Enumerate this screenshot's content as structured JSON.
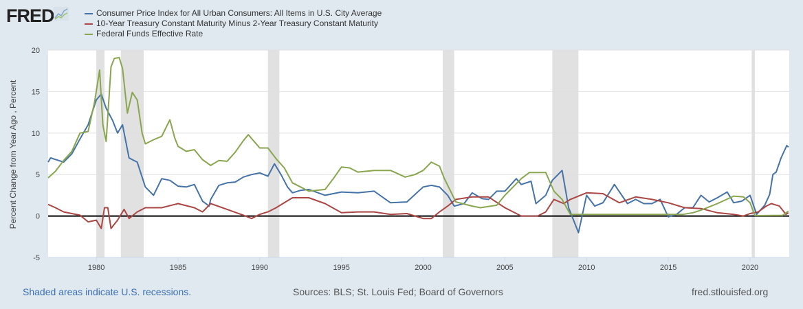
{
  "header": {
    "logo": "FRED"
  },
  "chart_data": {
    "type": "line",
    "title": "",
    "ylabel": "Percent Change from Year Ago , Percent",
    "xlabel": "",
    "xlim": [
      1977.05,
      2022.4
    ],
    "ylim": [
      -5,
      20
    ],
    "yticks": [
      -5,
      0,
      5,
      10,
      15,
      20
    ],
    "xticks": [
      1980,
      1985,
      1990,
      1995,
      2000,
      2005,
      2010,
      2015,
      2020
    ],
    "grid": true,
    "legend_position": "top-left",
    "recessions": [
      [
        1980.0,
        1980.5
      ],
      [
        1981.5,
        1982.9
      ],
      [
        1990.5,
        1991.2
      ],
      [
        2001.2,
        2001.9
      ],
      [
        2007.9,
        2009.5
      ],
      [
        2020.1,
        2020.3
      ]
    ],
    "series": [
      {
        "name": "Consumer Price Index for All Urban Consumers: All Items in U.S. City Average",
        "color": "#4572a7",
        "x": [
          1977.05,
          1977.2,
          1978,
          1978.5,
          1979,
          1979.5,
          1980.0,
          1980.3,
          1980.6,
          1981,
          1981.3,
          1981.6,
          1982,
          1982.5,
          1983,
          1983.5,
          1984,
          1984.5,
          1985,
          1985.5,
          1986,
          1986.5,
          1986.9,
          1987,
          1987.5,
          1988,
          1988.5,
          1989,
          1989.5,
          1990,
          1990.5,
          1990.9,
          1991.3,
          1991.7,
          1992,
          1992.5,
          1993,
          1994,
          1995,
          1996,
          1997,
          1998,
          1999,
          2000,
          2000.5,
          2001,
          2001.5,
          2001.9,
          2002.5,
          2003,
          2003.6,
          2004,
          2004.5,
          2005,
          2005.7,
          2006,
          2006.6,
          2006.9,
          2007.5,
          2007.9,
          2008.5,
          2008.9,
          2009.5,
          2010,
          2010.5,
          2011,
          2011.7,
          2012.5,
          2013,
          2013.5,
          2014,
          2014.5,
          2015,
          2015.5,
          2016,
          2016.5,
          2017,
          2017.5,
          2018,
          2018.6,
          2019,
          2019.5,
          2020,
          2020.4,
          2020.9,
          2021.2,
          2021.4,
          2021.6,
          2021.9,
          2022.25,
          2022.35
        ],
        "values": [
          6.5,
          7.0,
          6.5,
          7.5,
          9.3,
          11,
          14,
          14.7,
          13,
          11.5,
          10,
          11,
          7,
          6.5,
          3.5,
          2.5,
          4.5,
          4.3,
          3.6,
          3.5,
          3.8,
          1.8,
          1.2,
          2,
          3.7,
          4,
          4.1,
          4.7,
          5,
          5.2,
          4.8,
          6.3,
          5,
          3.5,
          2.8,
          3.1,
          3.2,
          2.5,
          2.9,
          2.8,
          3.0,
          1.6,
          1.7,
          3.5,
          3.7,
          3.5,
          2.5,
          1.2,
          1.5,
          2.8,
          2.1,
          2,
          3,
          3,
          4.5,
          3.8,
          4.2,
          1.5,
          2.5,
          4.3,
          5.5,
          1,
          -2,
          2.5,
          1.2,
          1.6,
          3.8,
          1.5,
          2,
          1.5,
          1.5,
          2,
          -0.1,
          0.2,
          1,
          1,
          2.5,
          1.7,
          2.2,
          2.9,
          1.6,
          1.8,
          2.5,
          0.2,
          1.3,
          2.6,
          5.0,
          5.3,
          7,
          8.5,
          8.3
        ]
      },
      {
        "name": "10-Year Treasury Constant Maturity Minus 2-Year Treasury Constant Maturity",
        "color": "#aa4643",
        "x": [
          1977.05,
          1977.5,
          1978,
          1979,
          1979.5,
          1980,
          1980.3,
          1980.5,
          1980.7,
          1980.9,
          1981.3,
          1981.7,
          1982,
          1982.5,
          1983,
          1984,
          1985,
          1986,
          1986.5,
          1987,
          1988,
          1989,
          1989.5,
          1990,
          1990.5,
          1991,
          1992,
          1993,
          1994,
          1995,
          1996,
          1997,
          1998,
          1999,
          2000,
          2000.5,
          2001,
          2001.5,
          2002,
          2003,
          2004,
          2005,
          2006,
          2007,
          2007.5,
          2008,
          2008.6,
          2009,
          2010,
          2011,
          2012,
          2013,
          2014,
          2015,
          2016,
          2017,
          2018,
          2019,
          2019.6,
          2020,
          2020.5,
          2021,
          2021.3,
          2021.8,
          2022.2,
          2022.35
        ],
        "values": [
          1.4,
          1,
          0.5,
          0.1,
          -0.7,
          -0.5,
          -1.5,
          1,
          1,
          -1.5,
          -0.5,
          0.8,
          -0.3,
          0.5,
          1,
          1,
          1.5,
          1,
          0.5,
          1.5,
          0.8,
          0.1,
          -0.3,
          0.2,
          0.5,
          1,
          2.2,
          2.2,
          1.5,
          0.4,
          0.5,
          0.5,
          0.2,
          0.3,
          -0.3,
          -0.3,
          0.5,
          1.2,
          2,
          2.3,
          2.3,
          1,
          0,
          0,
          0.5,
          2,
          1.5,
          2,
          2.8,
          2.7,
          1.6,
          2.3,
          2,
          1.6,
          1,
          0.9,
          0.4,
          0.2,
          0,
          0.3,
          0.5,
          1.2,
          1.5,
          1.2,
          0.2,
          0.4
        ]
      },
      {
        "name": "Federal Funds Effective Rate",
        "color": "#89a54e",
        "x": [
          1977.05,
          1977.5,
          1978,
          1978.5,
          1979,
          1979.5,
          1979.9,
          1980.2,
          1980.4,
          1980.6,
          1980.9,
          1981.1,
          1981.4,
          1981.6,
          1981.9,
          1982.2,
          1982.5,
          1982.8,
          1983,
          1983.5,
          1984,
          1984.5,
          1984.8,
          1985,
          1985.5,
          1986,
          1986.5,
          1987,
          1987.5,
          1988,
          1988.5,
          1989,
          1989.3,
          1990,
          1990.5,
          1991,
          1991.5,
          1992,
          1993,
          1994,
          1994.5,
          1995,
          1995.5,
          1996,
          1997,
          1998,
          1998.9,
          1999.5,
          2000,
          2000.5,
          2001,
          2001.3,
          2002,
          2003,
          2003.5,
          2004.5,
          2005,
          2006,
          2006.5,
          2007.5,
          2008,
          2008.5,
          2009,
          2015.9,
          2016.5,
          2017,
          2018,
          2019,
          2019.6,
          2020,
          2020.3,
          2022,
          2022.35
        ],
        "values": [
          4.6,
          5.4,
          6.7,
          7.8,
          10,
          10.2,
          13.8,
          17.6,
          11,
          9,
          18,
          19,
          19.1,
          17.8,
          12.4,
          14.9,
          14,
          10,
          8.7,
          9.2,
          9.6,
          11.6,
          9.4,
          8.4,
          7.8,
          8,
          6.8,
          6.1,
          6.7,
          6.6,
          7.7,
          9.1,
          9.8,
          8.2,
          8.2,
          6.9,
          5.8,
          4,
          3,
          3.2,
          4.5,
          5.9,
          5.8,
          5.3,
          5.5,
          5.5,
          4.7,
          5,
          5.5,
          6.5,
          6,
          4.5,
          1.7,
          1.2,
          1,
          1.3,
          2.5,
          4.5,
          5.25,
          5.25,
          3,
          2,
          0.2,
          0.2,
          0.4,
          0.7,
          1.5,
          2.4,
          2.3,
          1.6,
          0.05,
          0.08,
          0.6
        ]
      }
    ]
  },
  "footer": {
    "recession_note": "Shaded areas indicate U.S. recessions.",
    "sources": "Sources: BLS; St. Louis Fed; Board of Governors",
    "url": "fred.stlouisfed.org"
  }
}
